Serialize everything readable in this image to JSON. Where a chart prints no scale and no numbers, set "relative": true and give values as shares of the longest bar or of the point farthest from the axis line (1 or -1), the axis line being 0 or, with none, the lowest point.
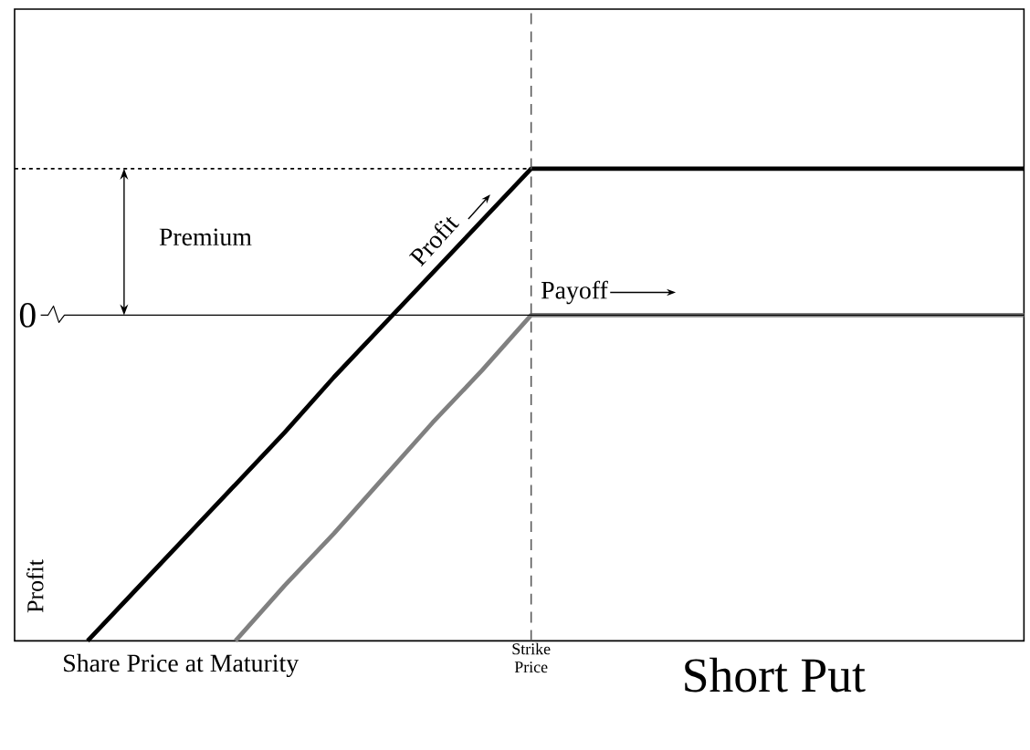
{
  "chart_data": {
    "type": "line",
    "title": "Short Put",
    "xlabel": "Share Price at Maturity",
    "ylabel": "Profit",
    "relative": true,
    "marker": "none",
    "line_style": "solid",
    "categories": [
      null,
      null,
      null,
      null,
      null,
      null,
      null,
      null,
      null,
      null,
      null,
      null,
      null,
      null,
      null,
      null,
      null,
      null,
      null,
      null
    ],
    "series": [
      {
        "color": "#000000",
        "values": [
          -1,
          -0.84,
          -0.68,
          -0.52,
          -0.36,
          -0.19,
          -0.03,
          0.13,
          0.29,
          0.45,
          0.45,
          0.45,
          0.45,
          0.45,
          0.45,
          0.45,
          0.45,
          0.45,
          0.45,
          0.45
        ]
      },
      {
        "color": "#808080",
        "values": [
          null,
          null,
          null,
          -1,
          -0.83,
          -0.67,
          -0.5,
          -0.33,
          -0.17,
          0,
          0,
          0,
          0,
          0,
          0,
          0,
          0,
          0,
          0,
          0
        ]
      }
    ],
    "ref_lines": [
      {
        "axis": "y",
        "value": 0,
        "label": "0",
        "line_style": "solid"
      },
      {
        "axis": "y",
        "value": 0.45,
        "line_style": "dotted"
      }
    ],
    "annotations": [
      "Premium",
      "Profit",
      "Payoff",
      "Strike Price"
    ]
  }
}
